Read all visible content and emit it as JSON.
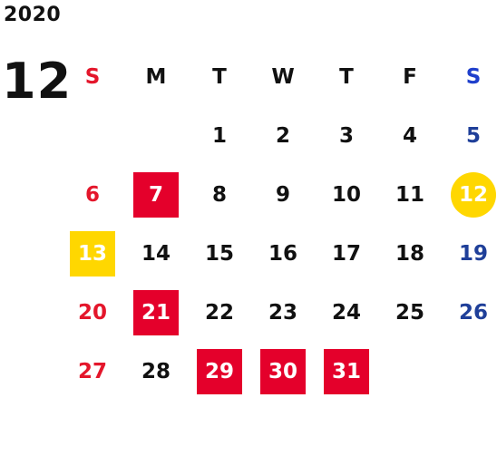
{
  "calendar": {
    "year": "2020",
    "month": "12",
    "weekdays": [
      "S",
      "M",
      "T",
      "W",
      "T",
      "F",
      "S"
    ],
    "colors": {
      "sunday": "#e4162b",
      "saturday": "#1f3f99",
      "highlight_red": "#e4002b",
      "highlight_yellow": "#ffd700"
    },
    "weeks": [
      [
        "",
        "",
        "1",
        "2",
        "3",
        "4",
        "5"
      ],
      [
        "6",
        "7",
        "8",
        "9",
        "10",
        "11",
        "12"
      ],
      [
        "13",
        "14",
        "15",
        "16",
        "17",
        "18",
        "19"
      ],
      [
        "20",
        "21",
        "22",
        "23",
        "24",
        "25",
        "26"
      ],
      [
        "27",
        "28",
        "29",
        "30",
        "31",
        "",
        ""
      ]
    ],
    "highlights": [
      {
        "day": "7",
        "style": "red-square"
      },
      {
        "day": "12",
        "style": "yellow-circle"
      },
      {
        "day": "13",
        "style": "yellow-square"
      },
      {
        "day": "21",
        "style": "red-square"
      },
      {
        "day": "29",
        "style": "red-square"
      },
      {
        "day": "30",
        "style": "red-square"
      },
      {
        "day": "31",
        "style": "red-square"
      }
    ]
  }
}
